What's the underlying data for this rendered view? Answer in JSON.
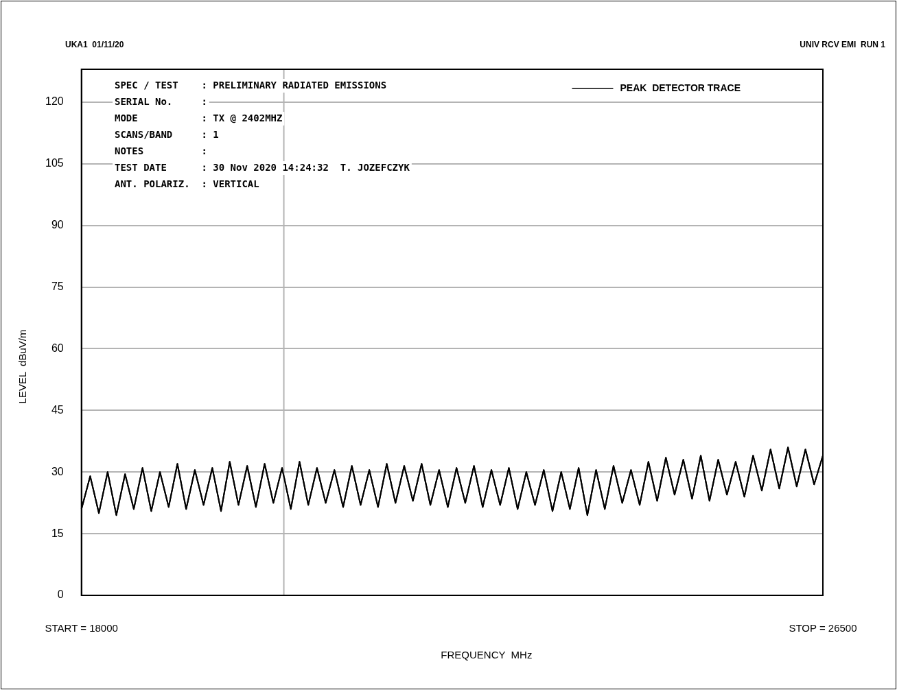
{
  "chart_data": {
    "type": "line",
    "xlabel": "FREQUENCY  MHz",
    "ylabel": "LEVEL  dBuV/m",
    "annotations": [
      "UKA1  01/11/20",
      "UNIV RCV EMI  RUN 1",
      "SPEC / TEST    : PRELIMINARY RADIATED EMISSIONS",
      "SERIAL No.     :",
      "MODE           : TX @ 2402MHZ",
      "SCANS/BAND     : 1",
      "NOTES          :",
      "TEST DATE      : 30 Nov 2020 14:24:32  T. JOZEFCZYK",
      "ANT. POLARIZ.  : VERTICAL"
    ],
    "x": [
      18000,
      18100,
      18200,
      18300,
      18400,
      18500,
      18600,
      18700,
      18800,
      18900,
      19000,
      19100,
      19200,
      19300,
      19400,
      19500,
      19600,
      19700,
      19800,
      19900,
      20000,
      20100,
      20200,
      20300,
      20400,
      20500,
      20600,
      20700,
      20800,
      20900,
      21000,
      21100,
      21200,
      21300,
      21400,
      21500,
      21600,
      21700,
      21800,
      21900,
      22000,
      22100,
      22200,
      22300,
      22400,
      22500,
      22600,
      22700,
      22800,
      22900,
      23000,
      23100,
      23200,
      23300,
      23400,
      23500,
      23600,
      23700,
      23800,
      23900,
      24000,
      24100,
      24200,
      24300,
      24400,
      24500,
      24600,
      24700,
      24800,
      24900,
      25000,
      25100,
      25200,
      25300,
      25400,
      25500,
      25600,
      25700,
      25800,
      25900,
      26000,
      26100,
      26200,
      26300,
      26400,
      26500
    ],
    "series": [
      {
        "name": "PEAK  DETECTOR TRACE",
        "color": "#000000",
        "values": [
          21,
          29,
          20,
          30,
          19.5,
          29.5,
          21,
          31,
          20.5,
          30,
          21.5,
          32,
          21,
          30.5,
          22,
          31,
          20.5,
          32.5,
          22,
          31.5,
          21.5,
          32,
          22.5,
          31,
          21,
          32.5,
          22,
          31,
          22.5,
          30.5,
          21.5,
          31.5,
          22,
          30.5,
          21.5,
          32,
          22.5,
          31.5,
          23,
          32,
          22,
          30.5,
          21.5,
          31,
          22.5,
          31.5,
          21.5,
          30.5,
          22,
          31,
          21,
          30,
          22,
          30.5,
          20.5,
          30,
          21,
          31,
          19.5,
          30.5,
          21,
          31.5,
          22.5,
          30.5,
          22,
          32.5,
          23,
          33.5,
          24.5,
          33,
          23.5,
          34,
          23,
          33,
          24.5,
          32.5,
          24,
          34,
          25.5,
          35.5,
          26,
          36,
          26.5,
          35.5,
          27,
          34
        ]
      }
    ],
    "xlim": [
      18000,
      26500
    ],
    "xticks": [
      {
        "value": 18000,
        "label": "START = 18000"
      },
      {
        "value": 26500,
        "label": "STOP = 26500"
      }
    ],
    "ylim": [
      0,
      128
    ],
    "yticks": [
      0,
      15,
      30,
      45,
      60,
      75,
      90,
      105,
      120
    ],
    "grid": "y",
    "legend": "top right",
    "marker": "none",
    "line_style": "solid",
    "ref_lines": [
      {
        "axis": "x",
        "value": 20320,
        "color": "#b4b4b4"
      }
    ]
  }
}
